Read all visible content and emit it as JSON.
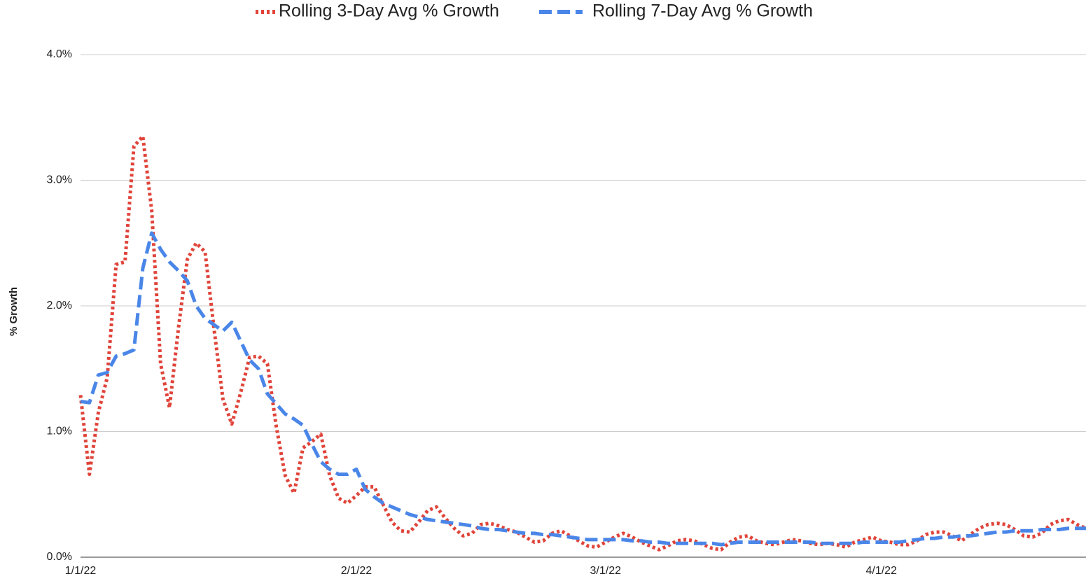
{
  "chart_data": {
    "type": "line",
    "y_label": "% Growth",
    "legend": "top",
    "grid": true,
    "x": [
      "1/1/22",
      "1/2/22",
      "1/3/22",
      "1/4/22",
      "1/5/22",
      "1/6/22",
      "1/7/22",
      "1/8/22",
      "1/9/22",
      "1/10/22",
      "1/11/22",
      "1/12/22",
      "1/13/22",
      "1/14/22",
      "1/15/22",
      "1/16/22",
      "1/17/22",
      "1/18/22",
      "1/19/22",
      "1/20/22",
      "1/21/22",
      "1/22/22",
      "1/23/22",
      "1/24/22",
      "1/25/22",
      "1/26/22",
      "1/27/22",
      "1/28/22",
      "1/29/22",
      "1/30/22",
      "1/31/22",
      "2/1/22",
      "2/2/22",
      "2/3/22",
      "2/4/22",
      "2/5/22",
      "2/6/22",
      "2/7/22",
      "2/8/22",
      "2/9/22",
      "2/10/22",
      "2/11/22",
      "2/12/22",
      "2/13/22",
      "2/14/22",
      "2/15/22",
      "2/16/22",
      "2/17/22",
      "2/18/22",
      "2/19/22",
      "2/20/22",
      "2/21/22",
      "2/22/22",
      "2/23/22",
      "2/24/22",
      "2/25/22",
      "2/26/22",
      "2/27/22",
      "2/28/22",
      "3/1/22",
      "3/2/22",
      "3/3/22",
      "3/4/22",
      "3/5/22",
      "3/6/22",
      "3/7/22",
      "3/8/22",
      "3/9/22",
      "3/10/22",
      "3/11/22",
      "3/12/22",
      "3/13/22",
      "3/14/22",
      "3/15/22",
      "3/16/22",
      "3/17/22",
      "3/18/22",
      "3/19/22",
      "3/20/22",
      "3/21/22",
      "3/22/22",
      "3/23/22",
      "3/24/22",
      "3/25/22",
      "3/26/22",
      "3/27/22",
      "3/28/22",
      "3/29/22",
      "3/30/22",
      "3/31/22",
      "4/1/22",
      "4/2/22",
      "4/3/22",
      "4/4/22",
      "4/5/22",
      "4/6/22",
      "4/7/22",
      "4/8/22",
      "4/9/22",
      "4/10/22",
      "4/11/22",
      "4/12/22",
      "4/13/22",
      "4/14/22",
      "4/15/22",
      "4/16/22",
      "4/17/22",
      "4/18/22",
      "4/19/22",
      "4/20/22",
      "4/21/22",
      "4/22/22",
      "4/23/22",
      "4/24/22"
    ],
    "xlim": [
      "1/1/22",
      "4/24/22"
    ],
    "xticks": [
      "1/1/22",
      "2/1/22",
      "3/1/22",
      "4/1/22"
    ],
    "ylim": [
      0,
      4
    ],
    "yticks": [
      {
        "value": 0,
        "label": "0.0%"
      },
      {
        "value": 1,
        "label": "1.0%"
      },
      {
        "value": 2,
        "label": "2.0%"
      },
      {
        "value": 3,
        "label": "3.0%"
      },
      {
        "value": 4,
        "label": "4.0%"
      }
    ],
    "series": [
      {
        "name": "Rolling 3-Day Avg % Growth",
        "color": "#e0443a",
        "style": "dotted",
        "values": [
          1.29,
          0.66,
          1.15,
          1.43,
          2.33,
          2.35,
          3.27,
          3.35,
          2.76,
          1.54,
          1.19,
          1.82,
          2.37,
          2.5,
          2.43,
          1.82,
          1.26,
          1.06,
          1.31,
          1.59,
          1.6,
          1.54,
          1.04,
          0.65,
          0.51,
          0.87,
          0.92,
          0.98,
          0.65,
          0.47,
          0.43,
          0.49,
          0.56,
          0.56,
          0.42,
          0.28,
          0.21,
          0.2,
          0.28,
          0.37,
          0.4,
          0.31,
          0.23,
          0.17,
          0.19,
          0.26,
          0.27,
          0.25,
          0.22,
          0.2,
          0.16,
          0.12,
          0.13,
          0.19,
          0.21,
          0.17,
          0.13,
          0.09,
          0.08,
          0.12,
          0.16,
          0.19,
          0.16,
          0.12,
          0.09,
          0.06,
          0.09,
          0.13,
          0.14,
          0.13,
          0.1,
          0.07,
          0.06,
          0.12,
          0.16,
          0.17,
          0.13,
          0.11,
          0.1,
          0.12,
          0.14,
          0.13,
          0.11,
          0.1,
          0.11,
          0.1,
          0.08,
          0.12,
          0.14,
          0.16,
          0.13,
          0.12,
          0.1,
          0.1,
          0.13,
          0.18,
          0.2,
          0.2,
          0.17,
          0.13,
          0.18,
          0.23,
          0.26,
          0.27,
          0.26,
          0.22,
          0.17,
          0.16,
          0.19,
          0.26,
          0.29,
          0.3,
          0.26,
          0.23
        ]
      },
      {
        "name": "Rolling 7-Day Avg % Growth",
        "color": "#4a86e8",
        "style": "dashed",
        "values": [
          1.24,
          1.23,
          1.45,
          1.47,
          1.6,
          1.62,
          1.65,
          2.3,
          2.58,
          2.45,
          2.35,
          2.28,
          2.2,
          2.0,
          1.9,
          1.85,
          1.8,
          1.87,
          1.72,
          1.57,
          1.5,
          1.3,
          1.22,
          1.14,
          1.1,
          1.05,
          0.9,
          0.76,
          0.7,
          0.66,
          0.66,
          0.7,
          0.54,
          0.48,
          0.43,
          0.4,
          0.37,
          0.34,
          0.32,
          0.3,
          0.29,
          0.28,
          0.27,
          0.26,
          0.25,
          0.23,
          0.22,
          0.22,
          0.21,
          0.2,
          0.19,
          0.19,
          0.18,
          0.18,
          0.17,
          0.16,
          0.15,
          0.14,
          0.14,
          0.14,
          0.14,
          0.14,
          0.13,
          0.13,
          0.12,
          0.12,
          0.11,
          0.11,
          0.11,
          0.11,
          0.11,
          0.11,
          0.1,
          0.11,
          0.12,
          0.12,
          0.12,
          0.12,
          0.12,
          0.12,
          0.12,
          0.12,
          0.12,
          0.11,
          0.11,
          0.11,
          0.11,
          0.11,
          0.12,
          0.12,
          0.12,
          0.12,
          0.12,
          0.13,
          0.14,
          0.15,
          0.15,
          0.16,
          0.16,
          0.17,
          0.17,
          0.18,
          0.19,
          0.2,
          0.2,
          0.21,
          0.21,
          0.21,
          0.22,
          0.22,
          0.22,
          0.23,
          0.23,
          0.23
        ]
      }
    ]
  }
}
